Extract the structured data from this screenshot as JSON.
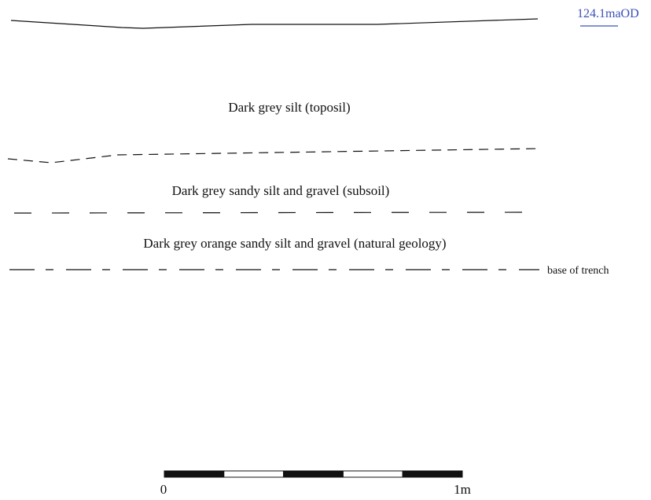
{
  "level": {
    "value": "124.1",
    "unit": "maOD",
    "color": "#3a52b8"
  },
  "layers": [
    {
      "label": "Dark grey silt (toposil)"
    },
    {
      "label": "Dark grey sandy silt and gravel (subsoil)"
    },
    {
      "label": "Dark grey orange sandy silt and gravel (natural geology)"
    }
  ],
  "base_label": "base of trench",
  "scale_bar": {
    "start_label": "0",
    "end_label": "1m",
    "segments": 5,
    "colors": {
      "filled": "#111111",
      "empty": "#ffffff"
    }
  }
}
